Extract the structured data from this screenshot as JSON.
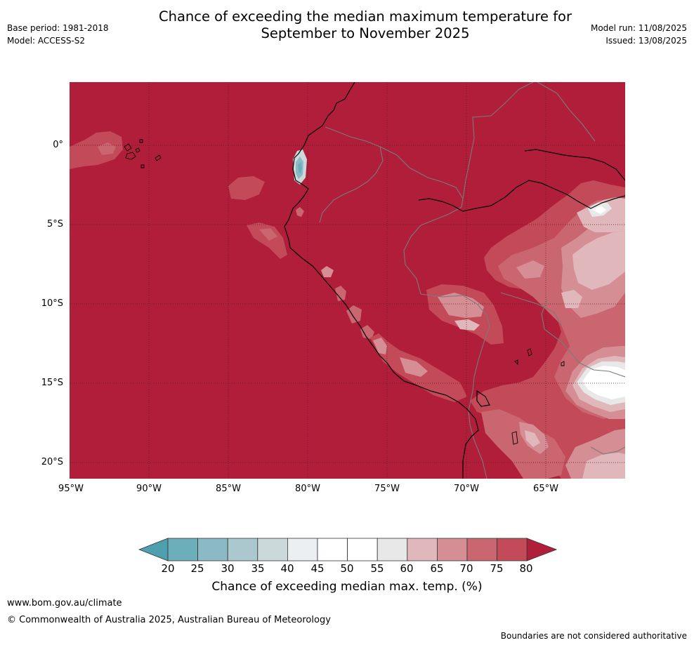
{
  "header": {
    "title_line1": "Chance of exceeding the median maximum temperature for",
    "title_line2": "September to November 2025",
    "base_period": "Base period: 1981-2018",
    "model": "Model: ACCESS-S2",
    "model_run": "Model run: 11/08/2025",
    "issued": "Issued: 13/08/2025"
  },
  "map": {
    "lat_labels": [
      "0°",
      "5°S",
      "10°S",
      "15°S",
      "20°S"
    ],
    "lon_labels": [
      "95°W",
      "90°W",
      "85°W",
      "80°W",
      "75°W",
      "70°W",
      "65°W"
    ],
    "extent": {
      "lon_min": -95,
      "lon_max": -60,
      "lat_min": -21,
      "lat_max": 4
    },
    "colors": {
      "ocean_land_dominant": "#B01E3A",
      "band_75_80": "#C24A59",
      "band_70_75": "#C9666F",
      "band_65_70": "#D48E94",
      "band_60_65": "#E0B8BC",
      "band_55_60": "#E8E8E8",
      "band_50_55": "#FFFFFF",
      "coast": "#000000",
      "border": "#7A7A7A"
    }
  },
  "colorbar": {
    "ticks": [
      "20",
      "25",
      "30",
      "35",
      "40",
      "45",
      "50",
      "55",
      "60",
      "65",
      "70",
      "75",
      "80"
    ],
    "label": "Chance of exceeding median max. temp. (%)",
    "colors": [
      "#4FA0AF",
      "#6DAEBB",
      "#8CBAC4",
      "#ABC8CE",
      "#CCD9DB",
      "#EBEFF1",
      "#FFFFFF",
      "#FFFFFF",
      "#E8E8E8",
      "#E0B8BC",
      "#D48E94",
      "#C9666F",
      "#C24A59",
      "#B01E3A"
    ]
  },
  "footer": {
    "url": "www.bom.gov.au/climate",
    "copyright": "© Commonwealth of Australia 2025, Australian Bureau of Meteorology",
    "disclaimer": "Boundaries are not considered authoritative"
  }
}
